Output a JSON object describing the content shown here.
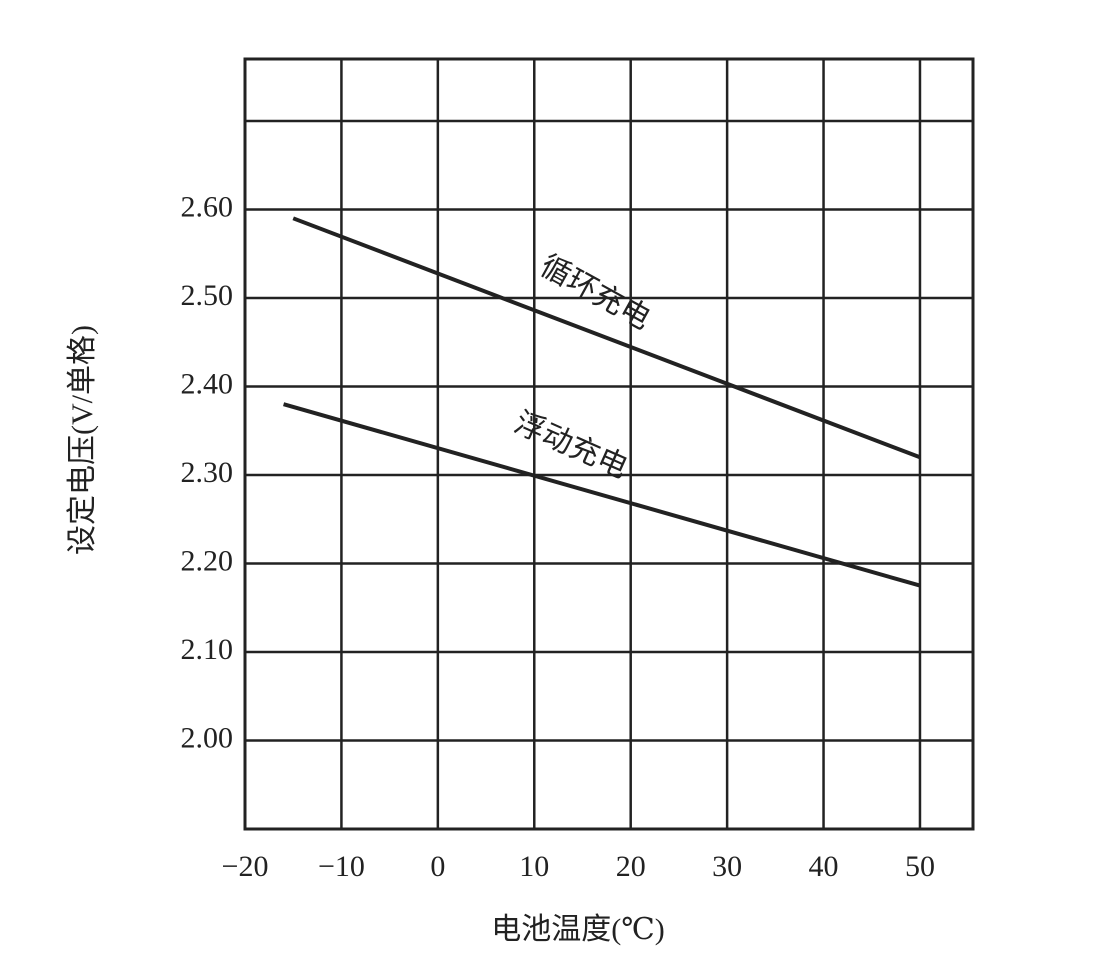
{
  "chart_data": {
    "type": "line",
    "y_label": "设定电压(V/单格)",
    "x_label": "电池温度(℃)",
    "xlim": [
      -20,
      55.5
    ],
    "xticks": [
      {
        "value": -20,
        "label": "−20"
      },
      {
        "value": -10,
        "label": "−10"
      },
      0,
      10,
      20,
      30,
      40,
      50
    ],
    "ylim": [
      1.9,
      2.77
    ],
    "yticks": [
      {
        "value": 2.0,
        "label": "2.00"
      },
      {
        "value": 2.1,
        "label": "2.10"
      },
      {
        "value": 2.2,
        "label": "2.20"
      },
      {
        "value": 2.3,
        "label": "2.30"
      },
      {
        "value": 2.4,
        "label": "2.40"
      },
      {
        "value": 2.5,
        "label": "2.50"
      },
      {
        "value": 2.6,
        "label": "2.60"
      }
    ],
    "y_gridlines": [
      2.7
    ],
    "grid": true,
    "series": [
      {
        "name": "循环充电",
        "color": "#222222",
        "x": [
          -15,
          50
        ],
        "values": [
          2.59,
          2.32
        ]
      },
      {
        "name": "浮动充电",
        "color": "#222222",
        "x": [
          -16,
          50
        ],
        "values": [
          2.38,
          2.175
        ]
      }
    ]
  }
}
